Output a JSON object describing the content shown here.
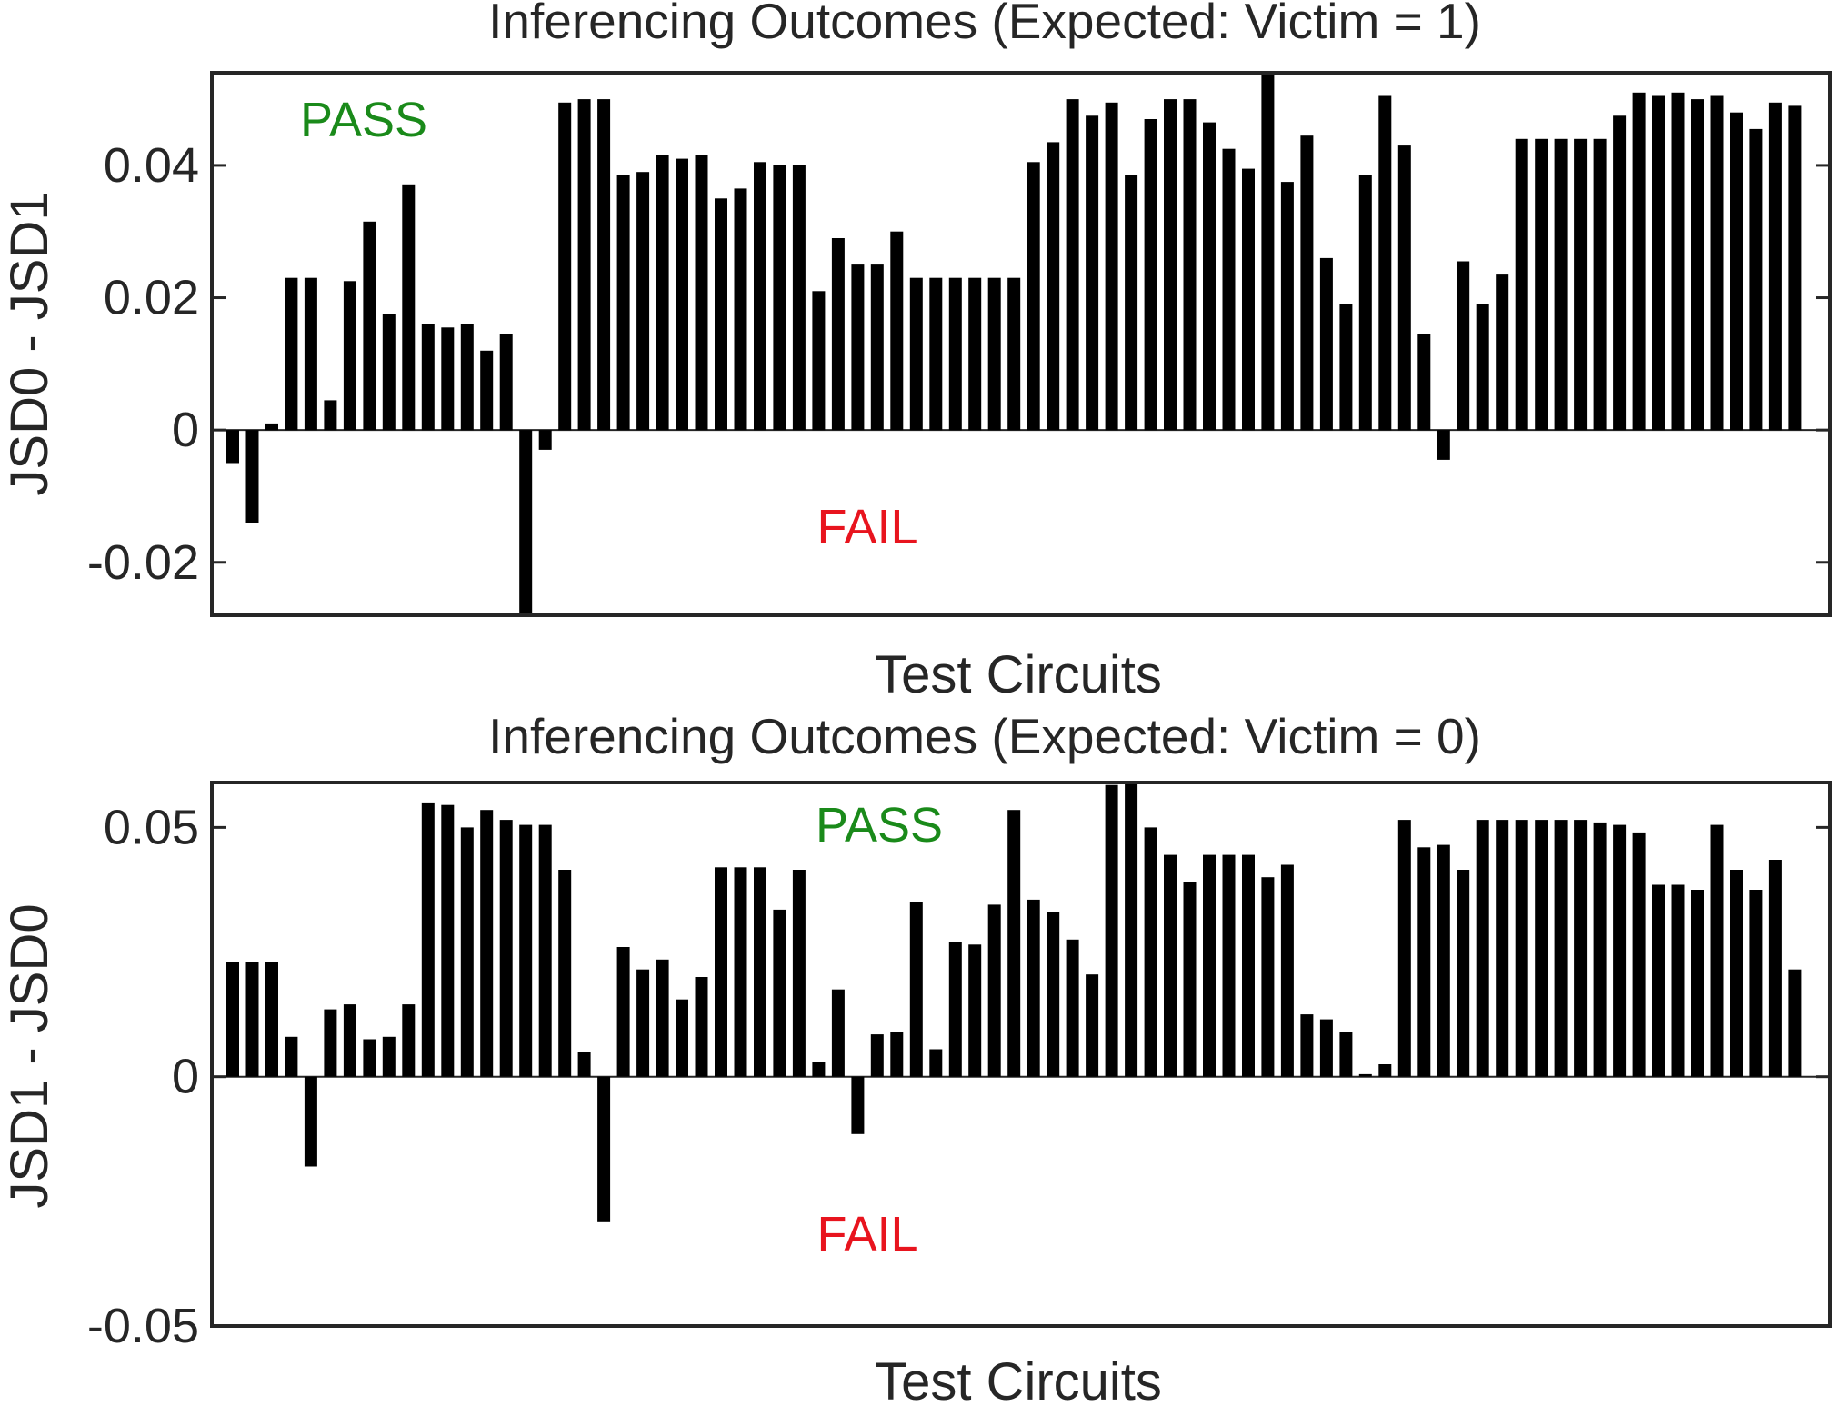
{
  "chart_data": [
    {
      "type": "bar",
      "title": "Inferencing Outcomes (Expected: Victim = 1)",
      "xlabel": "Test Circuits",
      "ylabel": "JSD0 - JSD1",
      "ylim": [
        -0.028,
        0.054
      ],
      "yticks": [
        -0.02,
        0,
        0.02,
        0.04
      ],
      "ytick_labels": [
        "-0.02",
        "0",
        "0.02",
        "0.04"
      ],
      "x_count": 81,
      "bar_color": "#000000",
      "annotations": [
        {
          "text": "PASS",
          "color": "#1a8a1a"
        },
        {
          "text": "FAIL",
          "color": "#e8141e"
        }
      ],
      "values": [
        -0.005,
        -0.014,
        0.001,
        0.023,
        0.023,
        0.0045,
        0.0225,
        0.0315,
        0.0175,
        0.037,
        0.016,
        0.0155,
        0.016,
        0.012,
        0.0145,
        -0.028,
        -0.003,
        0.0495,
        0.05,
        0.05,
        0.0385,
        0.039,
        0.0415,
        0.041,
        0.0415,
        0.035,
        0.0365,
        0.0405,
        0.04,
        0.04,
        0.021,
        0.029,
        0.025,
        0.025,
        0.03,
        0.023,
        0.023,
        0.023,
        0.023,
        0.023,
        0.023,
        0.0405,
        0.0435,
        0.05,
        0.0475,
        0.0495,
        0.0385,
        0.047,
        0.05,
        0.05,
        0.0465,
        0.0425,
        0.0395,
        0.054,
        0.0375,
        0.0445,
        0.026,
        0.019,
        0.0385,
        0.0505,
        0.043,
        0.0145,
        -0.0045,
        0.0255,
        0.019,
        0.0235,
        0.044,
        0.044,
        0.044,
        0.044,
        0.044,
        0.0475,
        0.051,
        0.0505,
        0.051,
        0.05,
        0.0505,
        0.048,
        0.0455,
        0.0495,
        0.049
      ]
    },
    {
      "type": "bar",
      "title": "Inferencing Outcomes (Expected: Victim = 0)",
      "xlabel": "Test Circuits",
      "ylabel": "JSD1 - JSD0",
      "ylim": [
        -0.05,
        0.059
      ],
      "yticks": [
        -0.05,
        0,
        0.05
      ],
      "ytick_labels": [
        "-0.05",
        "0",
        "0.05"
      ],
      "x_count": 81,
      "bar_color": "#000000",
      "annotations": [
        {
          "text": "PASS",
          "color": "#1a8a1a"
        },
        {
          "text": "FAIL",
          "color": "#e8141e"
        }
      ],
      "values": [
        0.023,
        0.023,
        0.023,
        0.008,
        -0.018,
        0.0135,
        0.0145,
        0.0075,
        0.008,
        0.0145,
        0.055,
        0.0545,
        0.05,
        0.0535,
        0.0515,
        0.0505,
        0.0505,
        0.0415,
        0.005,
        -0.029,
        0.026,
        0.0215,
        0.0235,
        0.0155,
        0.02,
        0.042,
        0.042,
        0.042,
        0.0335,
        0.0415,
        0.003,
        0.0175,
        -0.0115,
        0.0085,
        0.009,
        0.035,
        0.0055,
        0.027,
        0.0265,
        0.0345,
        0.0535,
        0.0355,
        0.033,
        0.0275,
        0.0205,
        0.0585,
        0.059,
        0.05,
        0.0445,
        0.039,
        0.0445,
        0.0445,
        0.0445,
        0.04,
        0.0425,
        0.0125,
        0.0115,
        0.009,
        0.0005,
        0.0025,
        0.0515,
        0.046,
        0.0465,
        0.0415,
        0.0515,
        0.0515,
        0.0515,
        0.0515,
        0.0515,
        0.0515,
        0.051,
        0.0505,
        0.049,
        0.0385,
        0.0385,
        0.0375,
        0.0505,
        0.0415,
        0.0375,
        0.0435,
        0.0215
      ]
    }
  ]
}
